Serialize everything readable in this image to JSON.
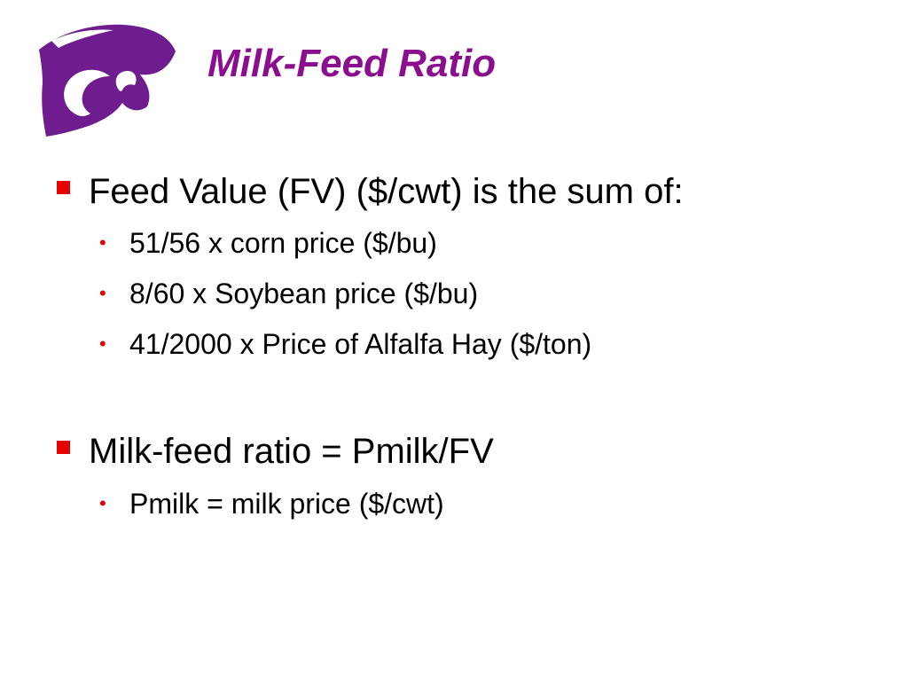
{
  "colors": {
    "title": "#8B0E8F",
    "logo": "#6F1D8E",
    "bullet_square": "#E60000",
    "sub_bullet_dot": "#E60000",
    "text": "#000000"
  },
  "logo": {
    "icon": "powercat-logo-icon"
  },
  "title": "Milk-Feed Ratio",
  "bullets": [
    {
      "text": "Feed Value (FV) ($/cwt) is the sum of:",
      "sub": [
        "51/56 x corn price ($/bu)",
        "8/60 x Soybean price ($/bu)",
        "41/2000 x Price of Alfalfa Hay ($/ton)"
      ]
    },
    {
      "text": "Milk-feed ratio = Pmilk/FV",
      "sub": [
        "Pmilk = milk price ($/cwt)"
      ]
    }
  ]
}
